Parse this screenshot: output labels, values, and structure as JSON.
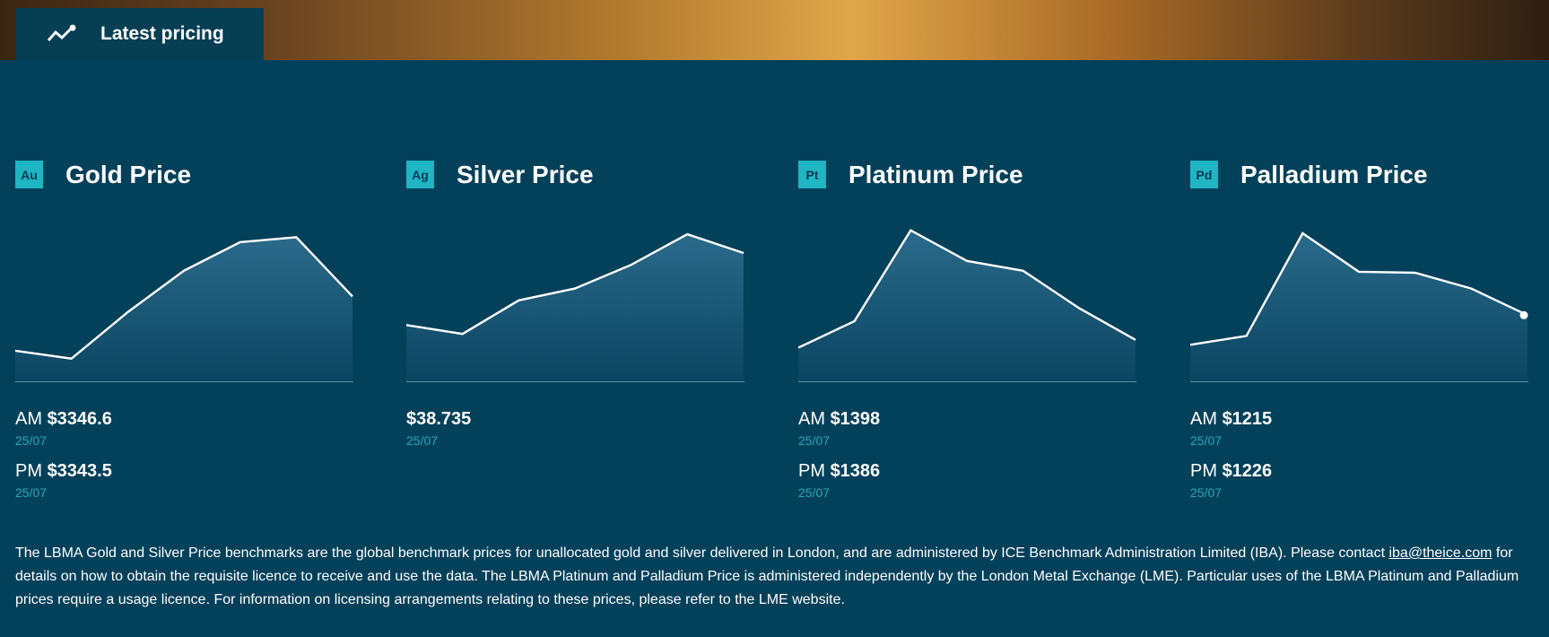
{
  "header": {
    "tab_label": "Latest pricing"
  },
  "metals": [
    {
      "symbol": "Au",
      "title": "Gold Price",
      "trend": [
        31,
        23,
        70,
        112,
        141,
        146,
        86
      ],
      "quotes": [
        {
          "session": "AM",
          "price": "$3346.6",
          "date": "25/07"
        },
        {
          "session": "PM",
          "price": "$3343.5",
          "date": "25/07"
        }
      ]
    },
    {
      "symbol": "Ag",
      "title": "Silver Price",
      "trend": [
        57,
        48,
        82,
        94,
        118,
        149,
        130
      ],
      "quotes": [
        {
          "price": "$38.735",
          "date": "25/07"
        }
      ]
    },
    {
      "symbol": "Pt",
      "title": "Platinum Price",
      "trend": [
        34,
        61,
        153,
        122,
        112,
        74,
        42
      ],
      "quotes": [
        {
          "session": "AM",
          "price": "$1398",
          "date": "25/07"
        },
        {
          "session": "PM",
          "price": "$1386",
          "date": "25/07"
        }
      ]
    },
    {
      "symbol": "Pd",
      "title": "Palladium Price",
      "trend": [
        37,
        46,
        150,
        111,
        110,
        94,
        67
      ],
      "quotes": [
        {
          "session": "AM",
          "price": "$1215",
          "date": "25/07"
        },
        {
          "session": "PM",
          "price": "$1226",
          "date": "25/07"
        }
      ]
    }
  ],
  "footer": {
    "text_before": "The LBMA Gold and Silver Price benchmarks are the global benchmark prices for unallocated gold and silver delivered in London, and are administered by ICE Benchmark Administration Limited (IBA). Please contact ",
    "link": "iba@theice.com",
    "text_after": " for details on how to obtain the requisite licence to receive and use the data. The LBMA Platinum and Palladium Price is administered independently by the London Metal Exchange (LME). Particular uses of the LBMA Platinum and Palladium prices require a usage licence. For information on licensing arrangements relating to these prices, please refer to the LME website."
  }
}
